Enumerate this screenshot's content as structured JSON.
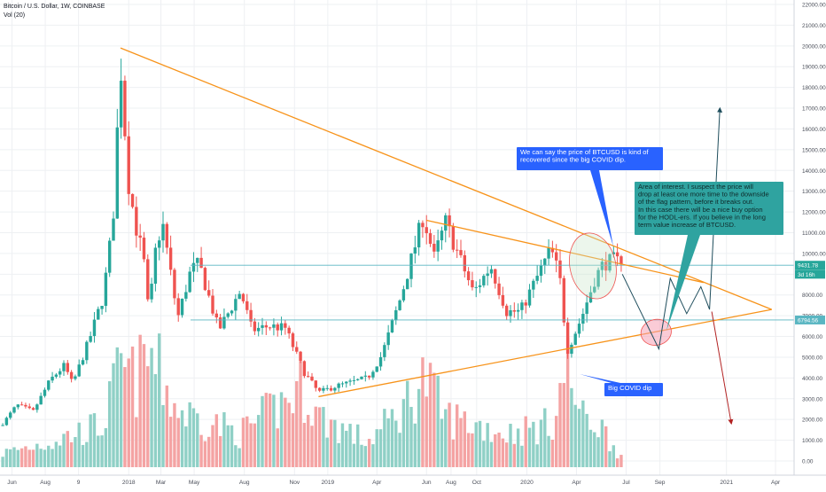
{
  "header": {
    "title": "Bitcoin / U.S. Dollar, 1W, COINBASE",
    "indicator": "Vol (20)"
  },
  "colors": {
    "up": "#26a69a",
    "down": "#ef5350",
    "vol_up": "#8fd0c6",
    "vol_down": "#f4a3a3",
    "trend": "#f7931a",
    "grid": "#eef0f3",
    "hline": "#5ab6c2",
    "note_blue": "#2962ff",
    "note_teal": "#2fa3a0",
    "arrow_dark": "#1e4d5c",
    "arrow_red": "#b22222"
  },
  "chart_data": {
    "type": "candlestick",
    "title": "Bitcoin / U.S. Dollar, 1W, COINBASE",
    "y_axis_side": "right",
    "ylim": [
      0,
      22000
    ],
    "y_ticks": [
      22000,
      21000,
      20000,
      19000,
      18000,
      17000,
      16000,
      15000,
      14000,
      13000,
      12000,
      11000,
      10000,
      9000,
      8000,
      7000,
      6000,
      5000,
      4000,
      3000,
      2000,
      1000,
      0
    ],
    "y_tick_labels": [
      "22000.00",
      "21000.00",
      "20000.00",
      "19000.00",
      "18000.00",
      "17000.00",
      "16000.00",
      "15000.00",
      "14000.00",
      "13000.00",
      "12000.00",
      "11000.00",
      "10000.00",
      "9000.00",
      "8000.00",
      "7000.00",
      "6000.00",
      "5000.00",
      "4000.00",
      "3000.00",
      "2000.00",
      "1000.00",
      "0.00"
    ],
    "x_range": [
      "2017-05-10",
      "2021-05-05"
    ],
    "x_ticks": [
      {
        "date": "2017-06-01",
        "label": "Jun"
      },
      {
        "date": "2017-08-01",
        "label": "Aug"
      },
      {
        "date": "2017-10-01",
        "label": "9"
      },
      {
        "date": "2018-01-01",
        "label": "2018"
      },
      {
        "date": "2018-03-01",
        "label": "Mar"
      },
      {
        "date": "2018-05-01",
        "label": "May"
      },
      {
        "date": "2018-08-01",
        "label": "Aug"
      },
      {
        "date": "2018-11-01",
        "label": "Nov"
      },
      {
        "date": "2019-01-01",
        "label": "2019"
      },
      {
        "date": "2019-04-01",
        "label": "Apr"
      },
      {
        "date": "2019-07-01",
        "label": "Jun"
      },
      {
        "date": "2019-08-15",
        "label": "Aug"
      },
      {
        "date": "2019-10-01",
        "label": "Oct"
      },
      {
        "date": "2020-01-01",
        "label": "2020"
      },
      {
        "date": "2020-04-01",
        "label": "Apr"
      },
      {
        "date": "2020-07-01",
        "label": "Jul"
      },
      {
        "date": "2020-09-01",
        "label": "Sep"
      },
      {
        "date": "2021-01-01",
        "label": "2021"
      },
      {
        "date": "2021-04-01",
        "label": "Apr"
      }
    ],
    "price_control_points": [
      [
        "2017-05-15",
        1800
      ],
      [
        "2017-06-10",
        2700
      ],
      [
        "2017-07-10",
        2400
      ],
      [
        "2017-08-10",
        3900
      ],
      [
        "2017-09-05",
        4600
      ],
      [
        "2017-09-20",
        3700
      ],
      [
        "2017-10-20",
        5800
      ],
      [
        "2017-11-15",
        7900
      ],
      [
        "2017-12-03",
        11500
      ],
      [
        "2017-12-17",
        19200
      ],
      [
        "2017-12-31",
        13500
      ],
      [
        "2018-01-14",
        11300
      ],
      [
        "2018-01-28",
        9800
      ],
      [
        "2018-02-07",
        7000
      ],
      [
        "2018-02-21",
        10600
      ],
      [
        "2018-03-05",
        11300
      ],
      [
        "2018-04-01",
        6900
      ],
      [
        "2018-04-25",
        9200
      ],
      [
        "2018-05-10",
        9500
      ],
      [
        "2018-06-15",
        6300
      ],
      [
        "2018-07-25",
        8200
      ],
      [
        "2018-08-15",
        6300
      ],
      [
        "2018-09-15",
        6500
      ],
      [
        "2018-10-15",
        6400
      ],
      [
        "2018-11-18",
        4300
      ],
      [
        "2018-12-15",
        3300
      ],
      [
        "2019-01-15",
        3600
      ],
      [
        "2019-02-15",
        3800
      ],
      [
        "2019-03-15",
        4000
      ],
      [
        "2019-04-10",
        5100
      ],
      [
        "2019-05-15",
        7900
      ],
      [
        "2019-06-25",
        11800
      ],
      [
        "2019-07-15",
        9800
      ],
      [
        "2019-08-05",
        11500
      ],
      [
        "2019-09-01",
        9700
      ],
      [
        "2019-09-25",
        8100
      ],
      [
        "2019-10-27",
        9400
      ],
      [
        "2019-11-25",
        7200
      ],
      [
        "2019-12-20",
        7200
      ],
      [
        "2020-01-15",
        8600
      ],
      [
        "2020-02-14",
        10200
      ],
      [
        "2020-03-01",
        8900
      ],
      [
        "2020-03-15",
        5300
      ],
      [
        "2020-04-10",
        6900
      ],
      [
        "2020-05-05",
        8800
      ],
      [
        "2020-05-20",
        9500
      ],
      [
        "2020-06-10",
        9700
      ],
      [
        "2020-06-24",
        9431.78
      ]
    ],
    "volume_control_points": [
      [
        "2017-05-15",
        500
      ],
      [
        "2017-08-10",
        900
      ],
      [
        "2017-11-15",
        1500
      ],
      [
        "2017-12-17",
        3500
      ],
      [
        "2018-01-14",
        3000
      ],
      [
        "2018-02-07",
        4000
      ],
      [
        "2018-04-01",
        2000
      ],
      [
        "2018-07-25",
        1200
      ],
      [
        "2018-11-18",
        2800
      ],
      [
        "2018-12-15",
        1800
      ],
      [
        "2019-03-15",
        900
      ],
      [
        "2019-05-15",
        2000
      ],
      [
        "2019-06-25",
        3200
      ],
      [
        "2019-08-05",
        1800
      ],
      [
        "2019-11-25",
        1200
      ],
      [
        "2020-02-14",
        1500
      ],
      [
        "2020-03-15",
        3600
      ],
      [
        "2020-04-10",
        1700
      ],
      [
        "2020-05-10",
        1600
      ],
      [
        "2020-06-24",
        300
      ]
    ],
    "price_labels": [
      {
        "value": 9431.78,
        "text": "9431.78",
        "color": "#26a69a"
      },
      {
        "value": 9000,
        "text": "3d 16h",
        "color": "#26a69a"
      },
      {
        "value": 6794.56,
        "text": "6794.56",
        "color": "#5ab6c2"
      }
    ],
    "horizontal_lines": [
      9431.78,
      6794.56
    ],
    "trendlines": [
      {
        "from": [
          "2017-12-17",
          19900
        ],
        "to": [
          "2021-03-25",
          7300
        ]
      },
      {
        "from": [
          "2018-12-15",
          3100
        ],
        "to": [
          "2021-03-25",
          7300
        ]
      },
      {
        "from": [
          "2019-07-01",
          11600
        ],
        "to": [
          "2020-11-20",
          8600
        ]
      }
    ],
    "projection_paths": [
      {
        "points": [
          [
            "2020-06-24",
            9000
          ],
          [
            "2020-08-30",
            5400
          ],
          [
            "2020-09-20",
            8800
          ],
          [
            "2020-10-20",
            7100
          ],
          [
            "2020-11-15",
            8400
          ],
          [
            "2020-12-01",
            7300
          ],
          [
            "2020-12-20",
            17000
          ]
        ],
        "style": "dark"
      },
      {
        "points": [
          [
            "2020-12-05",
            7200
          ],
          [
            "2021-01-10",
            1800
          ]
        ],
        "style": "red"
      }
    ],
    "ellipses": [
      {
        "center": [
          "2020-05-01",
          9400
        ],
        "rx_days": 42,
        "ry_value": 1600,
        "fill": "rgba(200,230,200,0.35)",
        "stroke": "#ef5350"
      },
      {
        "center": [
          "2020-08-25",
          6200
        ],
        "rx_days": 28,
        "ry_value": 620,
        "fill": "rgba(246,160,180,0.55)",
        "stroke": "#ef5350"
      }
    ],
    "annotations": [
      {
        "text": "We can say the price of BTCUSD is kind of recovered since the big COVID dip.",
        "style": "blue"
      },
      {
        "text": "Area of interest. I suspect the price will drop at least one more time to the downside of the flag pattern, before it breaks out. In this case there will be a nice buy option for the HODL-ers. If you believe in the long term value increase of BTCUSD.",
        "style": "teal"
      },
      {
        "text": "Big COVID dip",
        "style": "blue"
      }
    ]
  }
}
